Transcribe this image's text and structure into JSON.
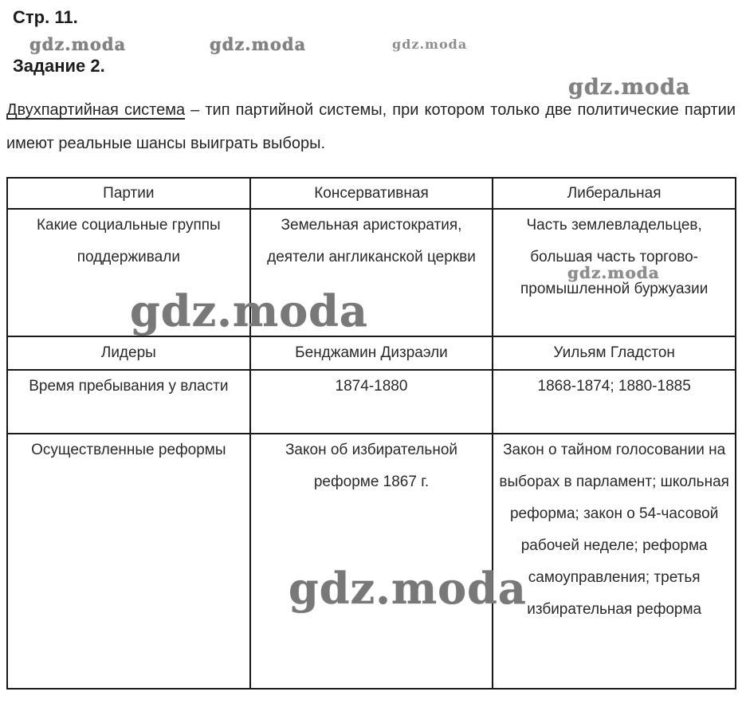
{
  "page": {
    "page_heading": "Стр. 11.",
    "task_heading": "Задание 2.",
    "watermark": "gdz.moda"
  },
  "definition": {
    "term": "Двухпартийная система",
    "rest": " – тип партийной системы, при котором только две политические партии имеют реальные шансы выиграть выборы."
  },
  "table": {
    "headers": [
      "Партии",
      "Консервативная",
      "Либеральная"
    ],
    "rows": [
      {
        "label": "Какие социальные группы поддерживали",
        "conservative": "Земельная аристократия, деятели англиканской церкви",
        "liberal": "Часть землевладельцев, большая часть торгово-промышленной буржуазии"
      },
      {
        "label": "Лидеры",
        "conservative": "Бенджамин Дизраэли",
        "liberal": "Уильям Гладстон"
      },
      {
        "label": "Время пребывания у власти",
        "conservative": "1874-1880",
        "liberal": "1868-1874; 1880-1885"
      },
      {
        "label": "Осуществленные реформы",
        "conservative": "Закон об избирательной реформе 1867 г.",
        "liberal": "Закон о тайном голосовании на выборах в парламент; школьная реформа; закон о 54-часовой рабочей неделе; реформа самоуправления; третья избирательная реформа"
      }
    ]
  },
  "colors": {
    "text": "#2a2a2a",
    "border": "#181818",
    "watermark": "#828282",
    "background": "#ffffff"
  }
}
